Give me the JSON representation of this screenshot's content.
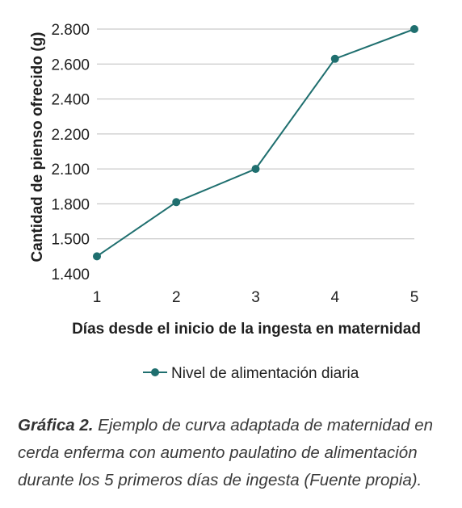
{
  "chart_data": {
    "type": "line",
    "x": [
      1,
      2,
      3,
      4,
      5
    ],
    "categories": [
      "1",
      "2",
      "3",
      "4",
      "5"
    ],
    "y_ticks": [
      "1.400",
      "1.500",
      "1.800",
      "2.100",
      "2.200",
      "2.400",
      "2.600",
      "2.800"
    ],
    "series": [
      {
        "name": "Nivel de alimentación diaria",
        "values": [
          "1.450",
          "1.815",
          "2.100",
          "2.630",
          "2.810"
        ]
      }
    ],
    "xlabel": "Días desde el inicio de la ingesta en maternidad",
    "ylabel": "Cantidad de pienso ofrecido (g)",
    "grid": true,
    "legend_position": "bottom",
    "color": "#1f6f6f"
  },
  "caption": {
    "label": "Gráfica 2.",
    "text": "Ejemplo de curva adaptada de maternidad en cerda enferma con aumento paulatino de alimentación durante los 5 primeros días de ingesta (Fuente propia)."
  }
}
